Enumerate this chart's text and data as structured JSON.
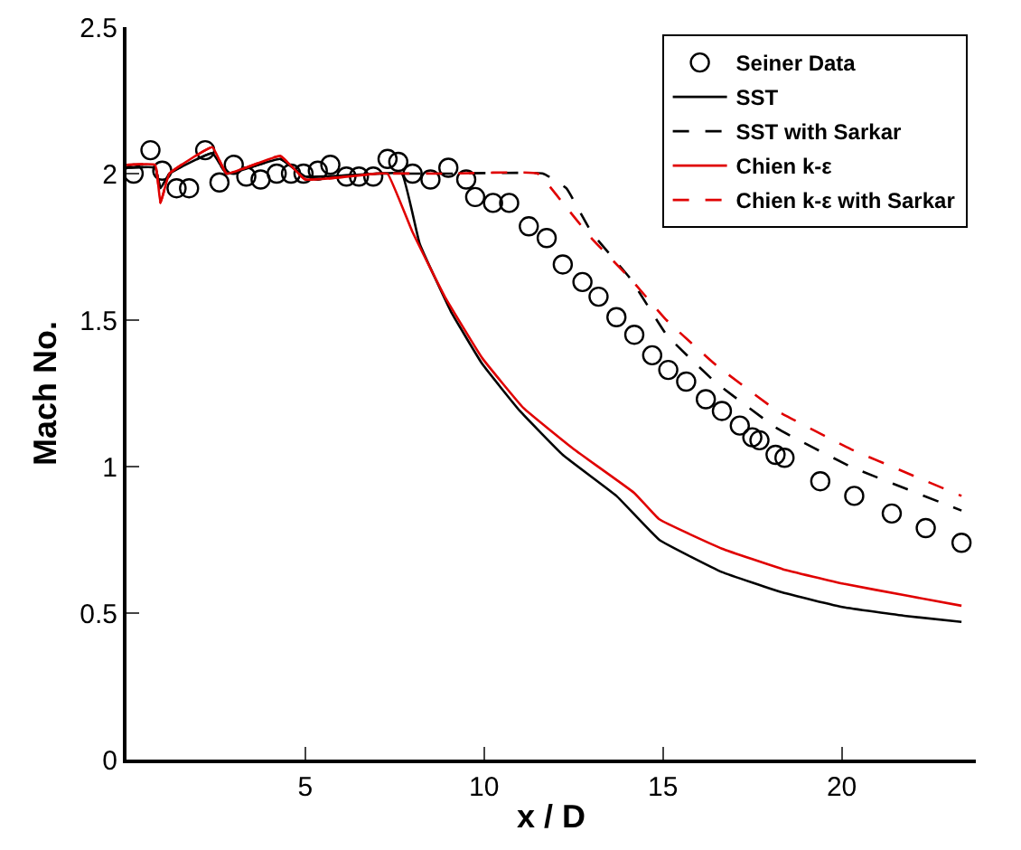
{
  "chart_data": {
    "type": "line",
    "xlabel": "x / D",
    "ylabel": "Mach No.",
    "xlim": [
      0,
      23.75
    ],
    "ylim": [
      0,
      2.5
    ],
    "xticks": [
      5,
      10,
      15,
      20
    ],
    "yticks": [
      0,
      0.5,
      1,
      1.5,
      2,
      2.5
    ],
    "grid": false,
    "legend": "top right",
    "series": [
      {
        "name": "Seiner Data",
        "type": "scatter",
        "marker": "circle",
        "color": "#000000",
        "x": [
          0.2,
          0.67,
          1.0,
          1.4,
          1.75,
          2.2,
          2.6,
          3.0,
          3.35,
          3.75,
          4.2,
          4.6,
          4.95,
          5.35,
          5.7,
          6.15,
          6.5,
          6.9,
          7.3,
          7.6,
          8.0,
          8.5,
          9.0,
          9.5,
          9.75,
          10.25,
          10.7,
          11.25,
          11.75,
          12.2,
          12.75,
          13.2,
          13.7,
          14.2,
          14.7,
          15.15,
          15.65,
          16.2,
          16.65,
          17.15,
          17.5,
          17.7,
          18.15,
          18.4,
          19.4,
          20.35,
          21.4,
          22.35,
          23.35
        ],
        "values": [
          2.0,
          2.08,
          2.01,
          1.95,
          1.95,
          2.08,
          1.97,
          2.03,
          1.99,
          1.98,
          2.0,
          2.0,
          2.0,
          2.01,
          2.03,
          1.99,
          1.99,
          1.99,
          2.05,
          2.04,
          2.0,
          1.98,
          2.02,
          1.98,
          1.92,
          1.9,
          1.9,
          1.82,
          1.78,
          1.69,
          1.63,
          1.58,
          1.51,
          1.45,
          1.38,
          1.33,
          1.29,
          1.23,
          1.19,
          1.14,
          1.1,
          1.09,
          1.04,
          1.03,
          0.95,
          0.9,
          0.84,
          0.79,
          0.74
        ]
      },
      {
        "name": "SST",
        "marker": "none",
        "line_style": "solid",
        "color": "#000000",
        "x": [
          0,
          0.8,
          0.95,
          1.2,
          2.4,
          2.8,
          4.3,
          5.0,
          7.0,
          7.7,
          8.2,
          9.07,
          9.95,
          11.0,
          12.2,
          13.7,
          14.9,
          16.65,
          18.35,
          20.05,
          21.8,
          23.35
        ],
        "values": [
          2.02,
          2.02,
          1.95,
          2.0,
          2.07,
          2.0,
          2.05,
          1.99,
          2.0,
          2.0,
          1.76,
          1.53,
          1.35,
          1.19,
          1.04,
          0.9,
          0.75,
          0.64,
          0.57,
          0.52,
          0.49,
          0.47
        ]
      },
      {
        "name": "SST with Sarkar",
        "marker": "none",
        "line_style": "dashed",
        "color": "#000000",
        "x": [
          0,
          0.8,
          0.95,
          1.2,
          2.4,
          2.8,
          4.3,
          5.0,
          7.0,
          9.0,
          11.65,
          12.3,
          13.0,
          14.1,
          15.1,
          16.45,
          18.2,
          20.25,
          23.35
        ],
        "values": [
          2.02,
          2.02,
          1.95,
          2.0,
          2.07,
          2.0,
          2.05,
          1.99,
          2.0,
          2.0,
          2.0,
          1.95,
          1.8,
          1.64,
          1.45,
          1.29,
          1.13,
          1.0,
          0.85
        ]
      },
      {
        "name": "Chien k-ε",
        "marker": "none",
        "line_style": "solid",
        "color": "#e00000",
        "x": [
          0,
          0.8,
          0.95,
          1.2,
          2.4,
          2.8,
          4.3,
          5.0,
          7.0,
          7.3,
          8.0,
          8.9,
          9.95,
          11.1,
          12.5,
          14.2,
          14.9,
          16.65,
          18.35,
          20.05,
          21.8,
          23.35
        ],
        "values": [
          2.03,
          2.03,
          1.9,
          2.0,
          2.09,
          2.0,
          2.06,
          1.98,
          2.0,
          2.0,
          1.8,
          1.58,
          1.37,
          1.2,
          1.06,
          0.91,
          0.82,
          0.72,
          0.65,
          0.6,
          0.56,
          0.525
        ]
      },
      {
        "name": "Chien k-ε with Sarkar",
        "marker": "none",
        "line_style": "dashed",
        "color": "#e00000",
        "x": [
          0,
          0.8,
          0.95,
          1.2,
          2.4,
          2.8,
          4.3,
          5.0,
          7.0,
          9.0,
          11.5,
          12.2,
          13.0,
          14.1,
          15.1,
          16.45,
          18.2,
          20.25,
          23.35
        ],
        "values": [
          2.03,
          2.03,
          1.9,
          2.0,
          2.09,
          2.0,
          2.06,
          1.98,
          2.0,
          2.0,
          2.0,
          1.9,
          1.78,
          1.64,
          1.5,
          1.35,
          1.19,
          1.06,
          0.9
        ]
      }
    ]
  }
}
